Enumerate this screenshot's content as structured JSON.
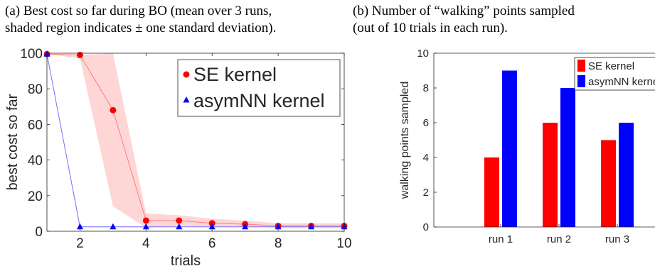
{
  "captions": {
    "a_line1": "(a) Best cost so far during BO (mean over 3 runs,",
    "a_line2": "shaded region indicates ± one standard deviation).",
    "b_line1": "(b) Number of “walking” points sampled",
    "b_line2": "(out of 10 trials in each run)."
  },
  "colors": {
    "se": "#ff0000",
    "asym": "#0000ff",
    "band": "#ffd6d6",
    "se_line": "#ff7a7a",
    "asym_line": "#7070ff"
  },
  "chart_data": [
    {
      "type": "line",
      "xlabel": "trials",
      "ylabel": "best cost so far",
      "xlim": [
        1,
        10
      ],
      "ylim": [
        0,
        100
      ],
      "xticks": [
        2,
        4,
        6,
        8,
        10
      ],
      "yticks": [
        0,
        20,
        40,
        60,
        80,
        100
      ],
      "legend_position": "top-right",
      "x": [
        1,
        2,
        3,
        4,
        5,
        6,
        7,
        8,
        9,
        10
      ],
      "series": [
        {
          "name": "SE kernel",
          "marker": "circle",
          "values": [
            99.5,
            99,
            68,
            6,
            6,
            4.5,
            4,
            3,
            3,
            3
          ],
          "band_upper": [
            99.5,
            99,
            100,
            10,
            9,
            7,
            6,
            4.5,
            4.5,
            4.5
          ],
          "band_lower": [
            99.5,
            97,
            14,
            2,
            3,
            2.5,
            2.5,
            2,
            2,
            2
          ]
        },
        {
          "name": "asymNN kernel",
          "marker": "triangle",
          "values": [
            99.5,
            2.5,
            2.5,
            2.5,
            2.5,
            2.5,
            2.5,
            2.5,
            2.5,
            2.5
          ]
        }
      ]
    },
    {
      "type": "bar",
      "ylabel": "walking points sampled",
      "ylim": [
        0,
        10
      ],
      "yticks": [
        0,
        2,
        4,
        6,
        8,
        10
      ],
      "categories": [
        "run 1",
        "run 2",
        "run 3"
      ],
      "legend_position": "top-right",
      "series": [
        {
          "name": "SE kernel",
          "values": [
            4,
            6,
            5
          ]
        },
        {
          "name": "asymNN kernel",
          "values": [
            9,
            8,
            6
          ]
        }
      ]
    }
  ]
}
